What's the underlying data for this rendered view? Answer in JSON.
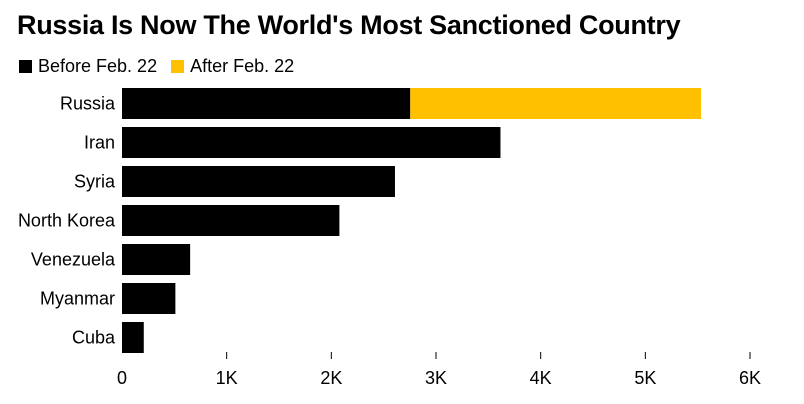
{
  "chart_data": {
    "type": "bar",
    "orientation": "horizontal",
    "stacked": true,
    "title": "Russia Is Now The World's Most Sanctioned Country",
    "categories": [
      "Russia",
      "Iran",
      "Syria",
      "North Korea",
      "Venezuela",
      "Myanmar",
      "Cuba"
    ],
    "series": [
      {
        "name": "Before Feb. 22",
        "color": "#000000",
        "values": [
          2754,
          3616,
          2608,
          2077,
          651,
          510,
          208
        ]
      },
      {
        "name": "After Feb. 22",
        "color": "#ffc000",
        "values": [
          2778,
          0,
          0,
          0,
          0,
          0,
          0
        ]
      }
    ],
    "xlim": [
      0,
      6000
    ],
    "xticks": [
      0,
      1000,
      2000,
      3000,
      4000,
      5000,
      6000
    ],
    "xtick_labels": [
      "0",
      "1K",
      "2K",
      "3K",
      "4K",
      "5K",
      "6K"
    ],
    "xlabel": "",
    "ylabel": "",
    "grid": false,
    "legend_position": "top-left"
  }
}
